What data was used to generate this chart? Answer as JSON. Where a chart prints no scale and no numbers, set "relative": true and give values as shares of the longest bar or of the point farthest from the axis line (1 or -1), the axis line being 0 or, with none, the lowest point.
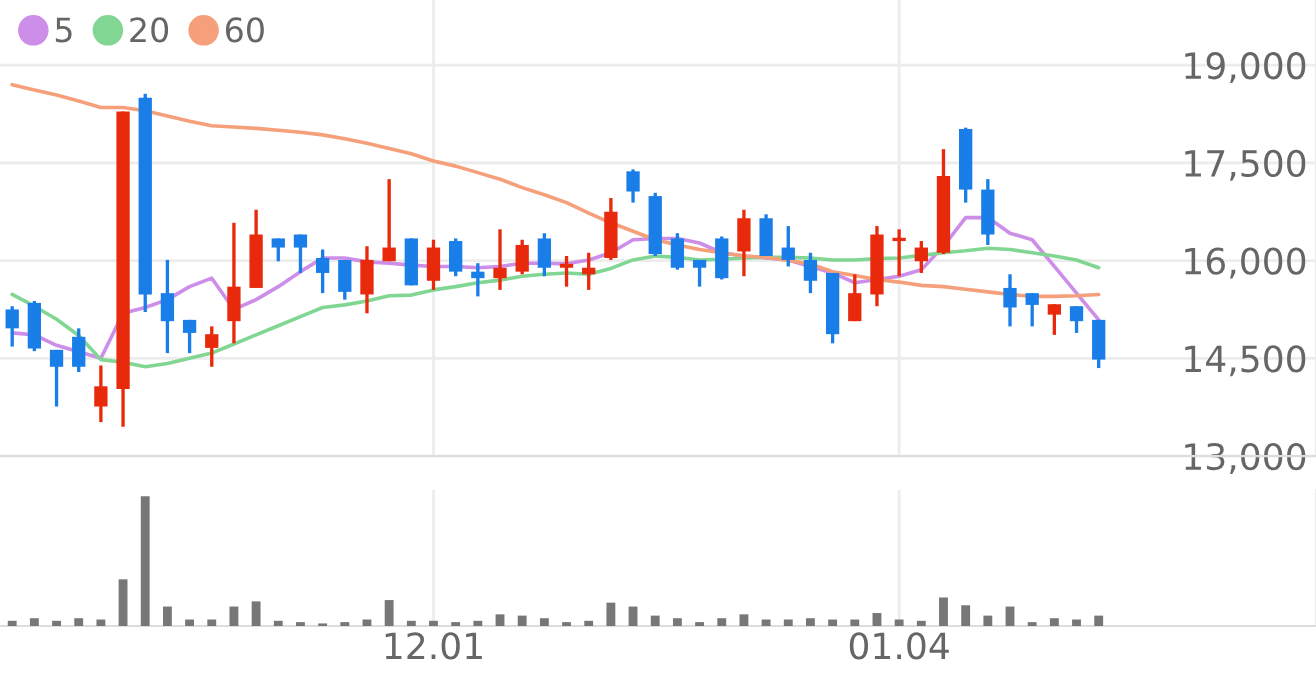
{
  "chart_data": [
    {
      "type": "candlestick",
      "categories": [
        null,
        null,
        null,
        null,
        null,
        null,
        null,
        null,
        null,
        null,
        null,
        null,
        null,
        null,
        null,
        null,
        null,
        null,
        null,
        "12.01",
        null,
        null,
        null,
        null,
        null,
        null,
        null,
        null,
        null,
        null,
        null,
        null,
        null,
        null,
        null,
        null,
        null,
        null,
        null,
        null,
        "01.04",
        null,
        null,
        null,
        null,
        null,
        null,
        null,
        null,
        null
      ],
      "ohlc": [
        [
          15250,
          15300,
          14680,
          14960
        ],
        [
          15350,
          15380,
          14610,
          14650
        ],
        [
          14630,
          14630,
          13760,
          14370
        ],
        [
          14830,
          14960,
          14290,
          14370
        ],
        [
          13760,
          14390,
          13520,
          14070
        ],
        [
          14030,
          18290,
          13450,
          18290
        ],
        [
          18500,
          18560,
          15210,
          15480
        ],
        [
          15500,
          16010,
          14580,
          15070
        ],
        [
          15090,
          15090,
          14580,
          14890
        ],
        [
          14660,
          14990,
          14370,
          14870
        ],
        [
          15070,
          16580,
          14730,
          15600
        ],
        [
          15580,
          16780,
          15580,
          16400
        ],
        [
          16340,
          16340,
          15990,
          16200
        ],
        [
          16400,
          16400,
          15810,
          16200
        ],
        [
          16040,
          16170,
          15500,
          15810
        ],
        [
          16010,
          16010,
          15400,
          15520
        ],
        [
          15480,
          16220,
          15190,
          16010
        ],
        [
          15990,
          17250,
          15990,
          16200
        ],
        [
          16340,
          16340,
          15620,
          15620
        ],
        [
          15690,
          16320,
          15550,
          16200
        ],
        [
          16300,
          16340,
          15760,
          15830
        ],
        [
          15830,
          15960,
          15450,
          15730
        ],
        [
          15730,
          16480,
          15550,
          15890
        ],
        [
          15830,
          16320,
          15790,
          16240
        ],
        [
          16340,
          16420,
          15760,
          15890
        ],
        [
          15890,
          16070,
          15600,
          15950
        ],
        [
          15790,
          16120,
          15550,
          15890
        ],
        [
          16040,
          16960,
          16010,
          16750
        ],
        [
          17370,
          17400,
          16890,
          17060
        ],
        [
          16990,
          17040,
          16070,
          16100
        ],
        [
          16340,
          16420,
          15860,
          15890
        ],
        [
          16010,
          16010,
          15600,
          15890
        ],
        [
          16340,
          16370,
          15710,
          15730
        ],
        [
          16140,
          16780,
          15760,
          16650
        ],
        [
          16650,
          16710,
          16070,
          16070
        ],
        [
          16200,
          16530,
          15910,
          16010
        ],
        [
          16010,
          16120,
          15500,
          15690
        ],
        [
          15810,
          15810,
          14730,
          14870
        ],
        [
          15070,
          15790,
          15070,
          15500
        ],
        [
          15480,
          16530,
          15300,
          16400
        ],
        [
          16300,
          16480,
          15760,
          16350
        ],
        [
          15990,
          16300,
          15810,
          16200
        ],
        [
          16120,
          17710,
          16100,
          17300
        ],
        [
          18020,
          18040,
          16890,
          17090
        ],
        [
          17090,
          17250,
          16240,
          16400
        ],
        [
          15580,
          15790,
          14990,
          15280
        ],
        [
          15500,
          15500,
          14990,
          15320
        ],
        [
          15170,
          15330,
          14860,
          15330
        ],
        [
          15300,
          15300,
          14890,
          15070
        ],
        [
          15090,
          15090,
          14350,
          14480
        ]
      ],
      "colors": [
        "#1a7ee8",
        "#1a7ee8",
        "#1a7ee8",
        "#1a7ee8",
        "#e8290b",
        "#e8290b",
        "#1a7ee8",
        "#1a7ee8",
        "#1a7ee8",
        "#e8290b",
        "#e8290b",
        "#e8290b",
        "#1a7ee8",
        "#1a7ee8",
        "#1a7ee8",
        "#1a7ee8",
        "#e8290b",
        "#e8290b",
        "#1a7ee8",
        "#e8290b",
        "#1a7ee8",
        "#1a7ee8",
        "#e8290b",
        "#e8290b",
        "#1a7ee8",
        "#e8290b",
        "#e8290b",
        "#e8290b",
        "#1a7ee8",
        "#1a7ee8",
        "#1a7ee8",
        "#1a7ee8",
        "#1a7ee8",
        "#e8290b",
        "#1a7ee8",
        "#1a7ee8",
        "#1a7ee8",
        "#1a7ee8",
        "#e8290b",
        "#e8290b",
        "#e8290b",
        "#e8290b",
        "#e8290b",
        "#1a7ee8",
        "#1a7ee8",
        "#1a7ee8",
        "#1a7ee8",
        "#e8290b",
        "#1a7ee8",
        "#1a7ee8"
      ],
      "series": [
        {
          "name": "5",
          "type": "line",
          "color": "#cc8ee8",
          "values": [
            14890,
            14860,
            14700,
            14600,
            14500,
            15190,
            15280,
            15400,
            15600,
            15730,
            15250,
            15400,
            15600,
            15830,
            16040,
            16040,
            15980,
            15960,
            15930,
            15910,
            15910,
            15890,
            15910,
            15960,
            15960,
            15950,
            16010,
            16120,
            16320,
            16340,
            16340,
            16270,
            16120,
            16070,
            16040,
            16010,
            15910,
            15810,
            15660,
            15710,
            15760,
            15860,
            16220,
            16660,
            16660,
            16420,
            16320,
            15910,
            15500,
            15090
          ]
        },
        {
          "name": "20",
          "type": "line",
          "color": "#82d694",
          "values": [
            15480,
            15300,
            15100,
            14850,
            14480,
            14440,
            14370,
            14420,
            14500,
            14580,
            14720,
            14860,
            15000,
            15140,
            15280,
            15320,
            15380,
            15460,
            15470,
            15550,
            15600,
            15660,
            15700,
            15760,
            15790,
            15810,
            15790,
            15880,
            16010,
            16070,
            16050,
            16010,
            16020,
            16040,
            16050,
            16050,
            16040,
            16010,
            16010,
            16030,
            16040,
            16080,
            16120,
            16150,
            16190,
            16170,
            16120,
            16070,
            16010,
            15890
          ]
        },
        {
          "name": "60",
          "type": "line",
          "color": "#f5a07a",
          "values": [
            18700,
            18620,
            18540,
            18450,
            18350,
            18350,
            18300,
            18220,
            18140,
            18070,
            18050,
            18030,
            18000,
            17970,
            17930,
            17870,
            17800,
            17720,
            17640,
            17530,
            17450,
            17350,
            17250,
            17120,
            17010,
            16890,
            16730,
            16580,
            16450,
            16320,
            16240,
            16170,
            16120,
            16070,
            16050,
            16000,
            15950,
            15830,
            15770,
            15710,
            15670,
            15620,
            15600,
            15560,
            15520,
            15480,
            15450,
            15450,
            15460,
            15480
          ]
        }
      ],
      "ylim": [
        13000,
        20000
      ],
      "yticks": [
        {
          "value": 13000,
          "label": "13,000"
        },
        {
          "value": 14500,
          "label": "14,500"
        },
        {
          "value": 16000,
          "label": "16,000"
        },
        {
          "value": 17500,
          "label": "17,500"
        },
        {
          "value": 19000,
          "label": "19,000"
        }
      ],
      "grid": true,
      "legend": "top left",
      "tick_labels": "y"
    },
    {
      "type": "bar",
      "categories": [
        null,
        null,
        null,
        null,
        null,
        null,
        null,
        null,
        null,
        null,
        null,
        null,
        null,
        null,
        null,
        null,
        null,
        null,
        null,
        "12.01",
        null,
        null,
        null,
        null,
        null,
        null,
        null,
        null,
        null,
        null,
        null,
        null,
        null,
        null,
        null,
        null,
        null,
        null,
        null,
        null,
        "01.04",
        null,
        null,
        null,
        null,
        null,
        null,
        null,
        null,
        null
      ],
      "values": [
        0.04,
        0.06,
        0.04,
        0.06,
        0.05,
        0.36,
        1,
        0.15,
        0.05,
        0.05,
        0.15,
        0.19,
        0.04,
        0.03,
        0.02,
        0.03,
        0.05,
        0.2,
        0.04,
        0.04,
        0.03,
        0.04,
        0.09,
        0.08,
        0.06,
        0.03,
        0.04,
        0.18,
        0.15,
        0.08,
        0.06,
        0.03,
        0.06,
        0.09,
        0.05,
        0.05,
        0.06,
        0.05,
        0.05,
        0.1,
        0.05,
        0.04,
        0.22,
        0.16,
        0.08,
        0.15,
        0.03,
        0.06,
        0.05,
        0.08
      ],
      "color": "#777777",
      "relative": true,
      "grid": "x",
      "tick_labels": "x"
    }
  ]
}
